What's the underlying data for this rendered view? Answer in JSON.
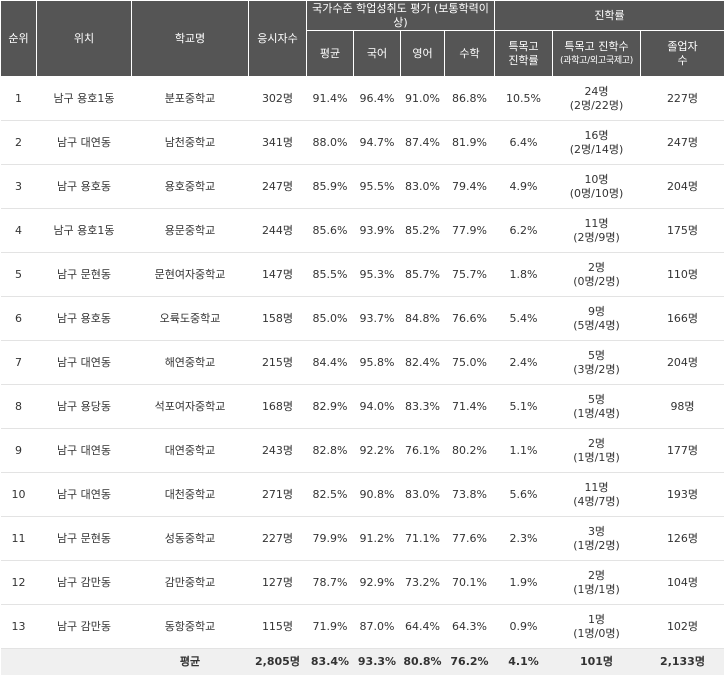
{
  "headers": {
    "rank": "순위",
    "location": "위치",
    "school": "학교명",
    "examinees": "응시자수",
    "achievement_group": "국가수준 학업성취도 평가 (보통학력이상)",
    "avg": "평균",
    "korean": "국어",
    "english": "영어",
    "math": "수학",
    "advancement_group": "진학률",
    "special_rate_line1": "특목고",
    "special_rate_line2": "진학률",
    "special_count": "특목고 진학수",
    "special_count_sub": "(과학고/외고국제고)",
    "grads_line1": "졸업자",
    "grads_line2": "수"
  },
  "rows": [
    {
      "rank": "1",
      "location": "남구 용호1동",
      "school": "분포중학교",
      "examinees": "302명",
      "avg": "91.4%",
      "korean": "96.4%",
      "english": "91.0%",
      "math": "86.8%",
      "special_rate": "10.5%",
      "special_count": "24명",
      "special_detail": "(2명/22명)",
      "grads": "227명"
    },
    {
      "rank": "2",
      "location": "남구 대연동",
      "school": "남천중학교",
      "examinees": "341명",
      "avg": "88.0%",
      "korean": "94.7%",
      "english": "87.4%",
      "math": "81.9%",
      "special_rate": "6.4%",
      "special_count": "16명",
      "special_detail": "(2명/14명)",
      "grads": "247명"
    },
    {
      "rank": "3",
      "location": "남구 용호동",
      "school": "용호중학교",
      "examinees": "247명",
      "avg": "85.9%",
      "korean": "95.5%",
      "english": "83.0%",
      "math": "79.4%",
      "special_rate": "4.9%",
      "special_count": "10명",
      "special_detail": "(0명/10명)",
      "grads": "204명"
    },
    {
      "rank": "4",
      "location": "남구 용호1동",
      "school": "용문중학교",
      "examinees": "244명",
      "avg": "85.6%",
      "korean": "93.9%",
      "english": "85.2%",
      "math": "77.9%",
      "special_rate": "6.2%",
      "special_count": "11명",
      "special_detail": "(2명/9명)",
      "grads": "175명"
    },
    {
      "rank": "5",
      "location": "남구 문현동",
      "school": "문현여자중학교",
      "examinees": "147명",
      "avg": "85.5%",
      "korean": "95.3%",
      "english": "85.7%",
      "math": "75.7%",
      "special_rate": "1.8%",
      "special_count": "2명",
      "special_detail": "(0명/2명)",
      "grads": "110명"
    },
    {
      "rank": "6",
      "location": "남구 용호동",
      "school": "오륙도중학교",
      "examinees": "158명",
      "avg": "85.0%",
      "korean": "93.7%",
      "english": "84.8%",
      "math": "76.6%",
      "special_rate": "5.4%",
      "special_count": "9명",
      "special_detail": "(5명/4명)",
      "grads": "166명"
    },
    {
      "rank": "7",
      "location": "남구 대연동",
      "school": "해연중학교",
      "examinees": "215명",
      "avg": "84.4%",
      "korean": "95.8%",
      "english": "82.4%",
      "math": "75.0%",
      "special_rate": "2.4%",
      "special_count": "5명",
      "special_detail": "(3명/2명)",
      "grads": "204명"
    },
    {
      "rank": "8",
      "location": "남구 용당동",
      "school": "석포여자중학교",
      "examinees": "168명",
      "avg": "82.9%",
      "korean": "94.0%",
      "english": "83.3%",
      "math": "71.4%",
      "special_rate": "5.1%",
      "special_count": "5명",
      "special_detail": "(1명/4명)",
      "grads": "98명"
    },
    {
      "rank": "9",
      "location": "남구 대연동",
      "school": "대연중학교",
      "examinees": "243명",
      "avg": "82.8%",
      "korean": "92.2%",
      "english": "76.1%",
      "math": "80.2%",
      "special_rate": "1.1%",
      "special_count": "2명",
      "special_detail": "(1명/1명)",
      "grads": "177명"
    },
    {
      "rank": "10",
      "location": "남구 대연동",
      "school": "대천중학교",
      "examinees": "271명",
      "avg": "82.5%",
      "korean": "90.8%",
      "english": "83.0%",
      "math": "73.8%",
      "special_rate": "5.6%",
      "special_count": "11명",
      "special_detail": "(4명/7명)",
      "grads": "193명"
    },
    {
      "rank": "11",
      "location": "남구 문현동",
      "school": "성동중학교",
      "examinees": "227명",
      "avg": "79.9%",
      "korean": "91.2%",
      "english": "71.1%",
      "math": "77.6%",
      "special_rate": "2.3%",
      "special_count": "3명",
      "special_detail": "(1명/2명)",
      "grads": "126명"
    },
    {
      "rank": "12",
      "location": "남구 감만동",
      "school": "감만중학교",
      "examinees": "127명",
      "avg": "78.7%",
      "korean": "92.9%",
      "english": "73.2%",
      "math": "70.1%",
      "special_rate": "1.9%",
      "special_count": "2명",
      "special_detail": "(1명/1명)",
      "grads": "104명"
    },
    {
      "rank": "13",
      "location": "남구 감만동",
      "school": "동항중학교",
      "examinees": "115명",
      "avg": "71.9%",
      "korean": "87.0%",
      "english": "64.4%",
      "math": "64.3%",
      "special_rate": "0.9%",
      "special_count": "1명",
      "special_detail": "(1명/0명)",
      "grads": "102명"
    }
  ],
  "average_row": {
    "label": "평균",
    "examinees": "2,805명",
    "avg": "83.4%",
    "korean": "93.3%",
    "english": "80.8%",
    "math": "76.2%",
    "special_rate": "4.1%",
    "special_count": "101명",
    "grads": "2,133명"
  }
}
